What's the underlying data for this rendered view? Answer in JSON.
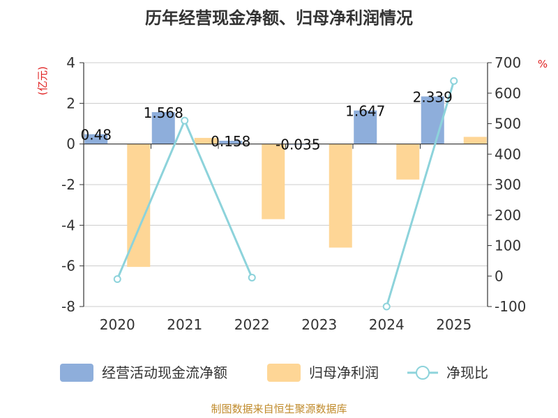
{
  "chart_data": {
    "type": "bar",
    "title": "历年经营现金净额、归母净利润情况",
    "categories": [
      "2020",
      "2021",
      "2022",
      "2023",
      "2024",
      "2025"
    ],
    "series": [
      {
        "name": "经营活动现金流净额",
        "type": "bar",
        "axis": "left",
        "color": "#8eaedb",
        "values": [
          0.48,
          1.568,
          0.158,
          -0.035,
          1.647,
          2.339
        ],
        "labels": [
          "0.48",
          "1.568",
          "0.158",
          "-0.035",
          "1.647",
          "2.339"
        ]
      },
      {
        "name": "归母净利润",
        "type": "bar",
        "axis": "left",
        "color": "#fed696",
        "values": [
          -6.05,
          0.3,
          -3.7,
          -5.1,
          -1.75,
          0.35
        ]
      },
      {
        "name": "净现比",
        "type": "line",
        "axis": "right",
        "color": "#8dd3db",
        "values": [
          -10,
          510,
          -5,
          null,
          -100,
          640
        ]
      }
    ],
    "y_left": {
      "unit": "(亿元)",
      "min": -8,
      "max": 4,
      "ticks": [
        "4",
        "2",
        "0",
        "-2",
        "-4",
        "-6",
        "-8"
      ]
    },
    "y_right": {
      "unit": "%",
      "min": -100,
      "max": 700,
      "ticks": [
        "700",
        "600",
        "500",
        "400",
        "300",
        "200",
        "100",
        "0",
        "-100"
      ]
    },
    "grid": true,
    "legend_position": "bottom",
    "source": "制图数据来自恒生聚源数据库"
  }
}
